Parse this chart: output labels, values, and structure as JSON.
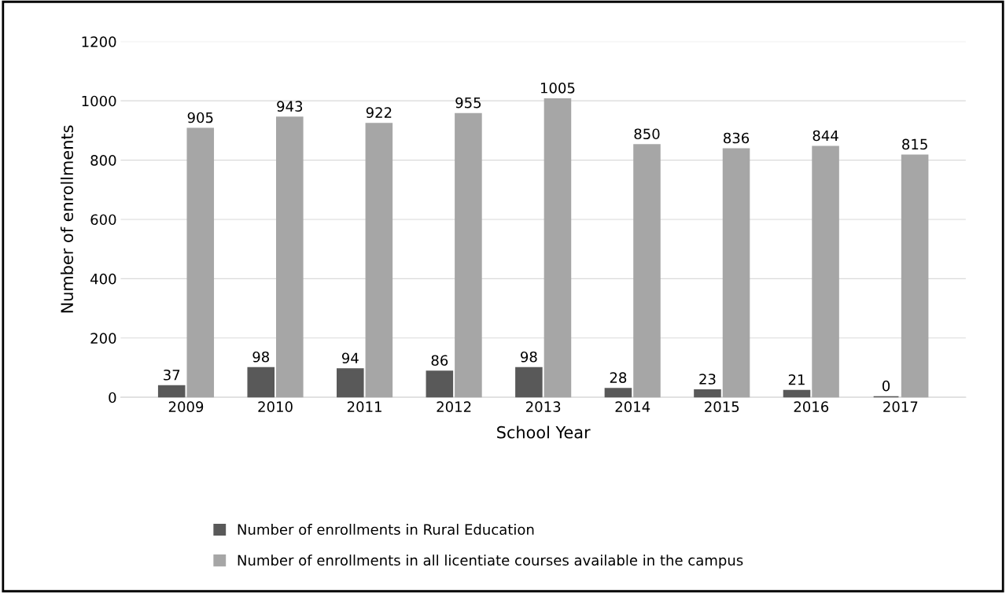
{
  "chart_data": {
    "type": "bar",
    "xlabel": "School Year",
    "ylabel": "Number of enrollments",
    "categories": [
      "2009",
      "2010",
      "2011",
      "2012",
      "2013",
      "2014",
      "2015",
      "2016",
      "2017"
    ],
    "series": [
      {
        "name": "Number of enrollments in Rural Education",
        "color": "#595959",
        "values": [
          37,
          98,
          94,
          86,
          98,
          28,
          23,
          21,
          0
        ]
      },
      {
        "name": "Number of enrollments in all licentiate courses available in the campus",
        "color": "#a6a6a6",
        "values": [
          905,
          943,
          922,
          955,
          1005,
          850,
          836,
          844,
          815
        ]
      }
    ],
    "ylim": [
      0,
      1200
    ],
    "yticks": [
      0,
      200,
      400,
      600,
      800,
      1000,
      1200
    ],
    "grid": "y",
    "legend": "bottom",
    "data_labels": true
  }
}
